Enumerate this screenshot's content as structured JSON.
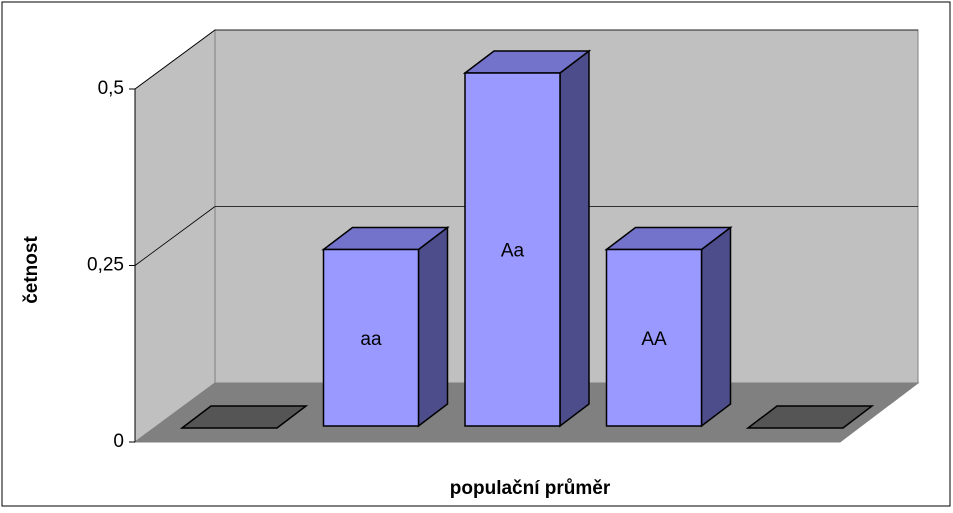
{
  "chart_data": {
    "type": "bar3d",
    "x_label": "populační průměr",
    "y_label": "četnost",
    "categories": [
      null,
      "aa",
      "Aa",
      "AA",
      null
    ],
    "values": [
      0,
      0.25,
      0.5,
      0.25,
      0
    ],
    "color": "#9999ff",
    "ylim": [
      0,
      0.5
    ],
    "yticks": [
      0,
      {
        "value": 0.25,
        "label": "0,25"
      },
      {
        "value": 0.5,
        "label": "0,5"
      }
    ],
    "grid": true
  }
}
